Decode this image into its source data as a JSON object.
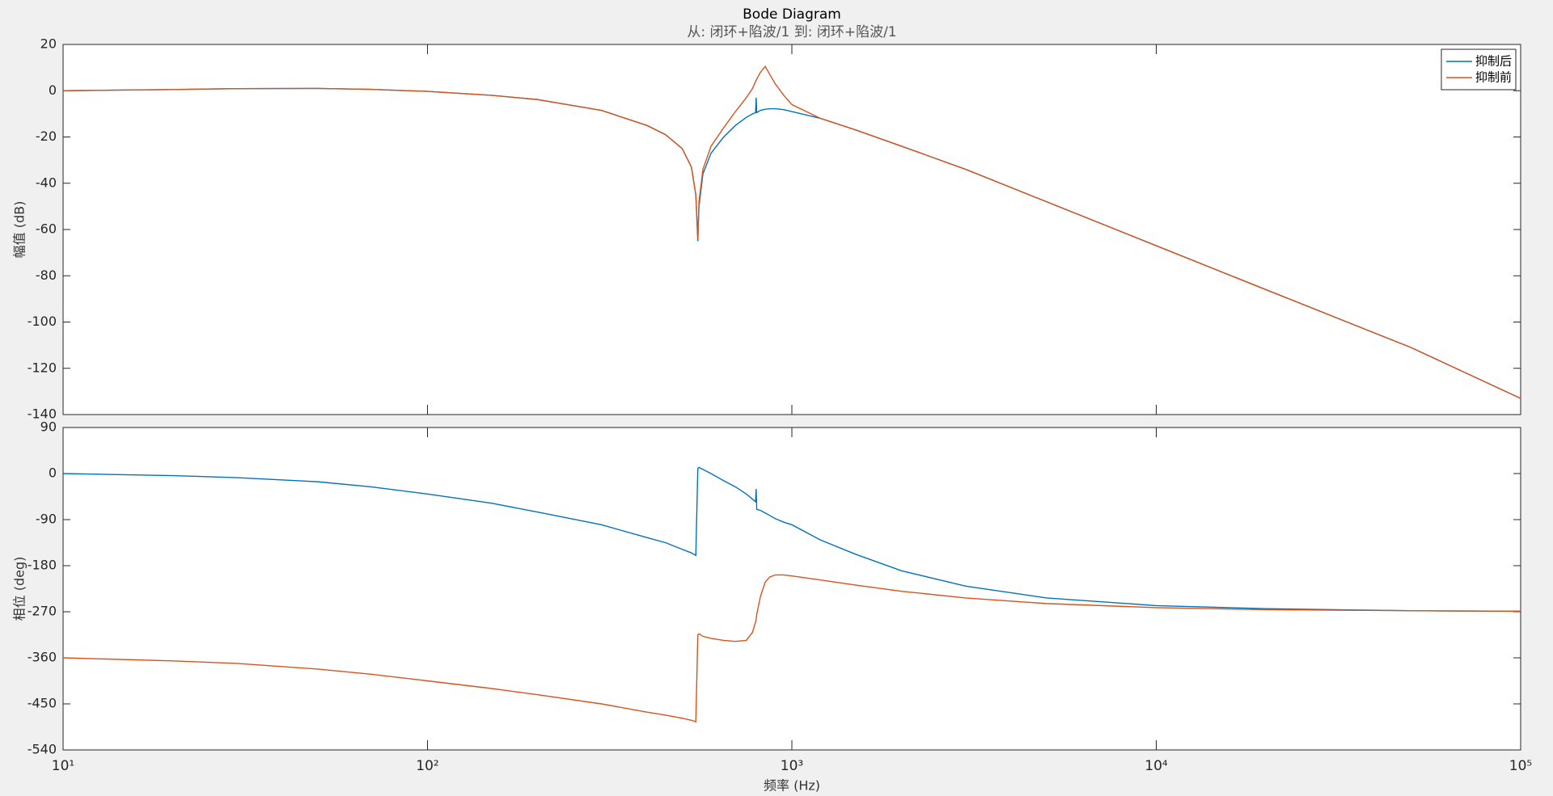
{
  "chart_data": [
    {
      "type": "line",
      "title": "Bode Diagram",
      "subtitle": "从: 闭环+陷波/1  到: 闭环+陷波/1",
      "ylabel": "幅值 (dB)",
      "log_x": true,
      "legend": "northeast",
      "xlim": [
        10,
        100000
      ],
      "xticks": [
        10,
        100,
        1000,
        10000,
        100000
      ],
      "ylim": [
        -140,
        20
      ],
      "yticks": [
        -140,
        -120,
        -100,
        -80,
        -60,
        -40,
        -20,
        0,
        20
      ],
      "x": [
        10,
        20,
        30,
        50,
        70,
        100,
        150,
        200,
        300,
        400,
        450,
        500,
        530,
        545,
        552,
        556,
        570,
        600,
        650,
        700,
        750,
        780,
        795,
        798,
        801,
        820,
        845,
        870,
        900,
        950,
        1000,
        1200,
        1500,
        2000,
        3000,
        5000,
        10000,
        20000,
        50000,
        100000
      ],
      "series": [
        {
          "name": "抑制后",
          "color": "#0072bd",
          "values": [
            0,
            0.5,
            0.9,
            1,
            0.6,
            -0.3,
            -2,
            -3.8,
            -8.5,
            -15,
            -19,
            -25,
            -33,
            -45,
            -65,
            -50,
            -36,
            -27,
            -20,
            -15,
            -11.5,
            -10,
            -9.5,
            -3,
            -9.5,
            -8.5,
            -8,
            -7.8,
            -7.8,
            -8.2,
            -9,
            -12,
            -17,
            -24,
            -34,
            -48,
            -67,
            -86,
            -111,
            -133
          ]
        },
        {
          "name": "抑制前",
          "color": "#d95319",
          "values": [
            0,
            0.5,
            0.9,
            1,
            0.6,
            -0.3,
            -2,
            -3.8,
            -8.5,
            -15,
            -19,
            -25,
            -33,
            -45,
            -64,
            -48,
            -34,
            -24,
            -16,
            -9,
            -3,
            1,
            4,
            4.5,
            5,
            8,
            10.5,
            7,
            3,
            -2,
            -6,
            -12,
            -17,
            -24,
            -34,
            -48,
            -67,
            -86,
            -111,
            -133
          ]
        }
      ]
    },
    {
      "type": "line",
      "ylabel": "相位 (deg)",
      "xlabel": "频率 (Hz)",
      "log_x": true,
      "xlim": [
        10,
        100000
      ],
      "xticks": [
        {
          "value": 10,
          "label": "10¹"
        },
        {
          "value": 100,
          "label": "10²"
        },
        {
          "value": 1000,
          "label": "10³"
        },
        {
          "value": 10000,
          "label": "10⁴"
        },
        {
          "value": 100000,
          "label": "10⁵"
        }
      ],
      "ylim": [
        -540,
        90
      ],
      "yticks": [
        -540,
        -450,
        -360,
        -270,
        -180,
        -90,
        0,
        90
      ],
      "x": [
        10,
        20,
        30,
        50,
        70,
        100,
        150,
        200,
        300,
        400,
        450,
        500,
        530,
        545,
        552,
        556,
        570,
        600,
        650,
        700,
        750,
        780,
        795,
        798,
        801,
        820,
        845,
        870,
        900,
        950,
        1000,
        1200,
        1500,
        2000,
        3000,
        5000,
        10000,
        20000,
        50000,
        100000
      ],
      "series": [
        {
          "name": "抑制后",
          "color": "#0072bd",
          "values": [
            0,
            -4,
            -8,
            -16,
            -26,
            -40,
            -58,
            -75,
            -100,
            -125,
            -135,
            -148,
            -155,
            -160,
            10,
            12,
            8,
            0,
            -14,
            -26,
            -40,
            -50,
            -55,
            -30,
            -70,
            -72,
            -77,
            -82,
            -88,
            -95,
            -100,
            -130,
            -158,
            -190,
            -220,
            -243,
            -258,
            -264,
            -268,
            -269
          ]
        },
        {
          "name": "抑制前",
          "color": "#d95319",
          "values": [
            -360,
            -366,
            -371,
            -382,
            -392,
            -405,
            -420,
            -432,
            -450,
            -466,
            -472,
            -478,
            -482,
            -485,
            -315,
            -313,
            -318,
            -322,
            -326,
            -328,
            -326,
            -310,
            -290,
            -285,
            -275,
            -240,
            -212,
            -202,
            -198,
            -198,
            -200,
            -208,
            -218,
            -230,
            -243,
            -254,
            -262,
            -266,
            -268,
            -269
          ]
        }
      ]
    }
  ]
}
